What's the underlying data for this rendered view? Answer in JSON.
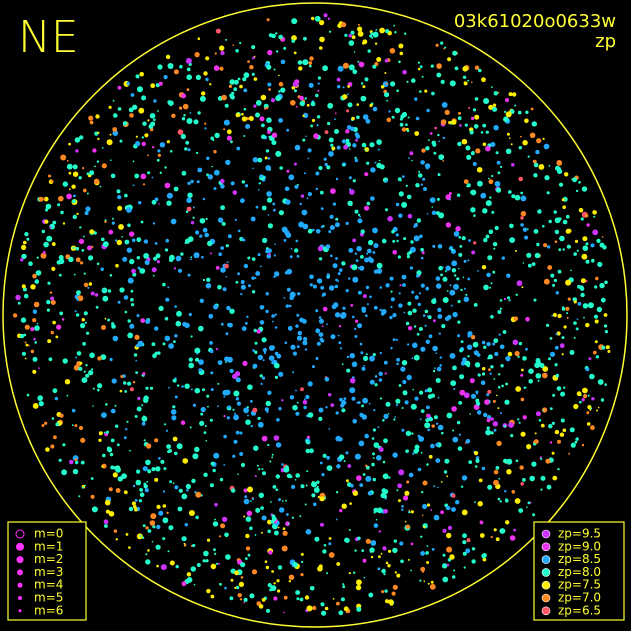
{
  "header": {
    "direction": "NE",
    "image_id": "03k61020o0633w",
    "color_key": "zp"
  },
  "magnitude_legend": {
    "entries": [
      {
        "label": "m=0",
        "color": "#ff33ff"
      },
      {
        "label": "m=1",
        "color": "#ff33ff"
      },
      {
        "label": "m=2",
        "color": "#ff33ff"
      },
      {
        "label": "m=3",
        "color": "#ff33ff"
      },
      {
        "label": "m=4",
        "color": "#ff33ff"
      },
      {
        "label": "m=5",
        "color": "#ff33ff"
      },
      {
        "label": "m=6",
        "color": "#ff33ff"
      }
    ]
  },
  "zp_legend": {
    "entries": [
      {
        "label": "zp=9.5",
        "color": "#cc33ff"
      },
      {
        "label": "zp=9.0",
        "color": "#ee33ee"
      },
      {
        "label": "zp=8.5",
        "color": "#22aaff"
      },
      {
        "label": "zp=8.0",
        "color": "#22ffcc"
      },
      {
        "label": "zp=7.5",
        "color": "#ffee00"
      },
      {
        "label": "zp=7.0",
        "color": "#ff8822"
      },
      {
        "label": "zp=6.5",
        "color": "#ff5566"
      }
    ]
  }
}
